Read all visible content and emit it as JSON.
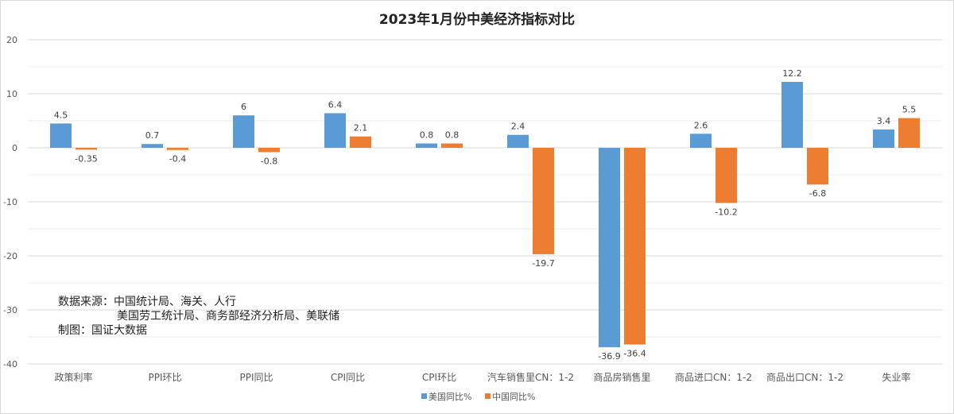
{
  "chart_data": {
    "type": "bar",
    "title": "2023年1月份中美经济指标对比",
    "categories": [
      "政策利率",
      "PPI环比",
      "PPI同比",
      "CPI同比",
      "CPI环比",
      "汽车销售里CN：1-2",
      "商品房销售里",
      "商品进口CN：1-2",
      "商品出口CN：1-2",
      "失业率"
    ],
    "series": [
      {
        "name": "美国同比%",
        "color": "#5b9bd5",
        "values": [
          4.5,
          0.7,
          6,
          6.4,
          0.8,
          2.4,
          -36.9,
          2.6,
          12.2,
          3.4
        ]
      },
      {
        "name": "中国同比%",
        "color": "#ed7d31",
        "values": [
          -0.35,
          -0.4,
          -0.8,
          2.1,
          0.8,
          -19.7,
          -36.4,
          -10.2,
          -6.8,
          5.5
        ]
      }
    ],
    "ylim": [
      -40,
      20
    ],
    "yticks": [
      20,
      10,
      0,
      -10,
      -20,
      -30,
      -40
    ],
    "grid": true,
    "legend": "bottom",
    "data_labels": true
  },
  "notes": {
    "source_label": "数据来源：中国统计局、海关、人行",
    "source_line2": "美国劳工统计局、商务部经济分析局、美联储",
    "author": "制图：国证大数据"
  }
}
